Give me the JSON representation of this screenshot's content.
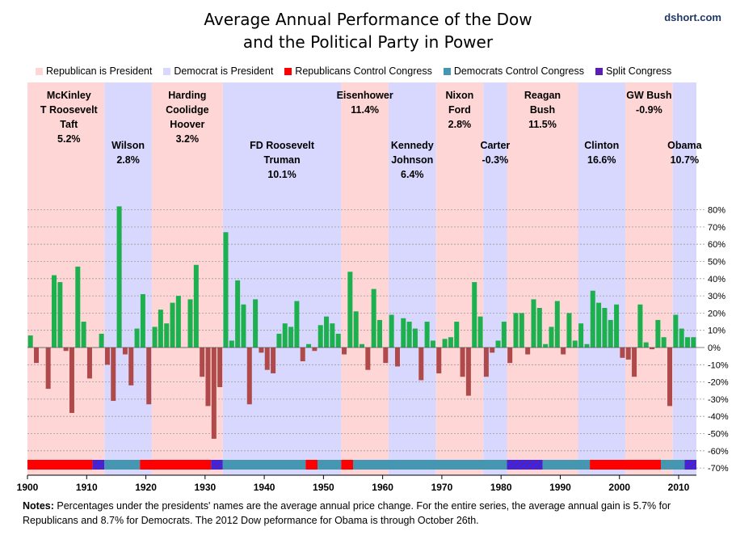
{
  "header": {
    "title_line1": "Average Annual Performance of the Dow",
    "title_line2": "and the Political Party in Power",
    "source": "dshort.com"
  },
  "legend": [
    {
      "label": "Republican is President",
      "color": "#ffd6d6"
    },
    {
      "label": "Democrat is President",
      "color": "#d8d8ff"
    },
    {
      "label": "Republicans Control Congress",
      "color": "#ff0000"
    },
    {
      "label": "Democrats Control Congress",
      "color": "#4596b0"
    },
    {
      "label": "Split Congress",
      "color": "#5a1fb0"
    }
  ],
  "notes": {
    "label": "Notes:",
    "text": "Percentages under the presidents' names are the average annual price change. For the entire series,  the average annual gain is 5.7% for Republicans and 8.7% for Democrats. The 2012  Dow peformance for Obama is through October 26th."
  },
  "colors": {
    "positive": "#1db04e",
    "negative": "#b04a4a",
    "republican_president": "#ffd6d6",
    "democrat_president": "#d8d8ff",
    "republican_congress": "#ff0000",
    "democrat_congress": "#4596b0",
    "split_congress": "#5a1fb0"
  },
  "chart_data": {
    "type": "bar",
    "title": "Average Annual Performance of the Dow and the Political Party in Power",
    "xlim": [
      1900,
      2012
    ],
    "ylim": [
      -70,
      80
    ],
    "x_ticks": [
      1900,
      1910,
      1920,
      1930,
      1940,
      1950,
      1960,
      1970,
      1980,
      1990,
      2000,
      2010
    ],
    "y_ticks": [
      -70,
      -60,
      -50,
      -40,
      -30,
      -20,
      -10,
      0,
      10,
      20,
      30,
      40,
      50,
      60,
      70,
      80
    ],
    "y_tick_labels": [
      "-70%",
      "-60%",
      "-50%",
      "-40%",
      "-30%",
      "-20%",
      "-10%",
      "0%",
      "10%",
      "20%",
      "30%",
      "40%",
      "50%",
      "60%",
      "70%",
      "80%"
    ],
    "grid": true,
    "years": [
      1900,
      1901,
      1902,
      1903,
      1904,
      1905,
      1906,
      1907,
      1908,
      1909,
      1910,
      1911,
      1912,
      1913,
      1914,
      1915,
      1916,
      1917,
      1918,
      1919,
      1920,
      1921,
      1922,
      1923,
      1924,
      1925,
      1926,
      1927,
      1928,
      1929,
      1930,
      1931,
      1932,
      1933,
      1934,
      1935,
      1936,
      1937,
      1938,
      1939,
      1940,
      1941,
      1942,
      1943,
      1944,
      1945,
      1946,
      1947,
      1948,
      1949,
      1950,
      1951,
      1952,
      1953,
      1954,
      1955,
      1956,
      1957,
      1958,
      1959,
      1960,
      1961,
      1962,
      1963,
      1964,
      1965,
      1966,
      1967,
      1968,
      1969,
      1970,
      1971,
      1972,
      1973,
      1974,
      1975,
      1976,
      1977,
      1978,
      1979,
      1980,
      1981,
      1982,
      1983,
      1984,
      1985,
      1986,
      1987,
      1988,
      1989,
      1990,
      1991,
      1992,
      1993,
      1994,
      1995,
      1996,
      1997,
      1998,
      1999,
      2000,
      2001,
      2002,
      2003,
      2004,
      2005,
      2006,
      2007,
      2008,
      2009,
      2010,
      2011,
      2012
    ],
    "values": [
      7,
      -9,
      0,
      -24,
      42,
      38,
      -2,
      -38,
      47,
      15,
      -18,
      0,
      8,
      -10,
      -31,
      82,
      -4,
      -22,
      11,
      31,
      -33,
      12,
      22,
      14,
      26,
      30,
      0,
      28,
      48,
      -17,
      -34,
      -53,
      -23,
      67,
      4,
      39,
      25,
      -33,
      28,
      -3,
      -13,
      -15,
      8,
      14,
      12,
      27,
      -8,
      2,
      -2,
      13,
      18,
      14,
      8,
      -4,
      44,
      21,
      2,
      -13,
      34,
      16,
      -9,
      19,
      -11,
      17,
      15,
      11,
      -19,
      15,
      4,
      -15,
      5,
      6,
      15,
      -17,
      -28,
      38,
      18,
      -17,
      -3,
      4,
      15,
      -9,
      20,
      20,
      -4,
      28,
      23,
      2,
      12,
      27,
      -4,
      20,
      4,
      14,
      2,
      33,
      26,
      23,
      16,
      25,
      -6,
      -7,
      -17,
      25,
      3,
      -1,
      16,
      6,
      -34,
      19,
      11,
      6,
      6
    ]
  },
  "president_bands": [
    {
      "start": 1900,
      "end": 1913,
      "party": "R"
    },
    {
      "start": 1913,
      "end": 1921,
      "party": "D"
    },
    {
      "start": 1921,
      "end": 1933,
      "party": "R"
    },
    {
      "start": 1933,
      "end": 1953,
      "party": "D"
    },
    {
      "start": 1953,
      "end": 1961,
      "party": "R"
    },
    {
      "start": 1961,
      "end": 1969,
      "party": "D"
    },
    {
      "start": 1969,
      "end": 1977,
      "party": "R"
    },
    {
      "start": 1977,
      "end": 1981,
      "party": "D"
    },
    {
      "start": 1981,
      "end": 1993,
      "party": "R"
    },
    {
      "start": 1993,
      "end": 2001,
      "party": "D"
    },
    {
      "start": 2001,
      "end": 2009,
      "party": "R"
    },
    {
      "start": 2009,
      "end": 2013,
      "party": "D"
    }
  ],
  "congress_bands": [
    {
      "start": 1900,
      "end": 1911,
      "party": "R"
    },
    {
      "start": 1911,
      "end": 1913,
      "party": "S"
    },
    {
      "start": 1913,
      "end": 1919,
      "party": "D"
    },
    {
      "start": 1919,
      "end": 1931,
      "party": "R"
    },
    {
      "start": 1931,
      "end": 1933,
      "party": "S"
    },
    {
      "start": 1933,
      "end": 1947,
      "party": "D"
    },
    {
      "start": 1947,
      "end": 1949,
      "party": "R"
    },
    {
      "start": 1949,
      "end": 1953,
      "party": "D"
    },
    {
      "start": 1953,
      "end": 1955,
      "party": "R"
    },
    {
      "start": 1955,
      "end": 1981,
      "party": "D"
    },
    {
      "start": 1981,
      "end": 1987,
      "party": "S"
    },
    {
      "start": 1987,
      "end": 1995,
      "party": "D"
    },
    {
      "start": 1995,
      "end": 2007,
      "party": "R"
    },
    {
      "start": 2007,
      "end": 2011,
      "party": "D"
    },
    {
      "start": 2011,
      "end": 2013,
      "party": "S"
    }
  ],
  "presidents": [
    {
      "name": "mckinley-roosevelt-taft",
      "lines": [
        "McKinley",
        "T Roosevelt",
        "Taft",
        "5.2%"
      ],
      "center_year": 1907,
      "top_row": true
    },
    {
      "name": "wilson",
      "lines": [
        "Wilson",
        "2.8%"
      ],
      "center_year": 1917,
      "top_row": false
    },
    {
      "name": "harding-coolidge-hoover",
      "lines": [
        "Harding",
        "Coolidge",
        "Hoover",
        "3.2%"
      ],
      "center_year": 1927,
      "top_row": true
    },
    {
      "name": "fdr-truman",
      "lines": [
        "FD Roosevelt",
        "Truman",
        "10.1%"
      ],
      "center_year": 1943,
      "top_row": false
    },
    {
      "name": "eisenhower",
      "lines": [
        "Eisenhower",
        "11.4%"
      ],
      "center_year": 1957,
      "top_row": true
    },
    {
      "name": "kennedy-johnson",
      "lines": [
        "Kennedy",
        "Johnson",
        "6.4%"
      ],
      "center_year": 1965,
      "top_row": false
    },
    {
      "name": "nixon-ford",
      "lines": [
        "Nixon",
        "Ford",
        "2.8%"
      ],
      "center_year": 1973,
      "top_row": true
    },
    {
      "name": "carter",
      "lines": [
        "Carter",
        "-0.3%"
      ],
      "center_year": 1979,
      "top_row": false
    },
    {
      "name": "reagan-bush",
      "lines": [
        "Reagan",
        "Bush",
        "11.5%"
      ],
      "center_year": 1987,
      "top_row": true
    },
    {
      "name": "clinton",
      "lines": [
        "Clinton",
        "16.6%"
      ],
      "center_year": 1997,
      "top_row": false
    },
    {
      "name": "gw-bush",
      "lines": [
        "GW Bush",
        "-0.9%"
      ],
      "center_year": 2005,
      "top_row": true
    },
    {
      "name": "obama",
      "lines": [
        "Obama",
        "10.7%"
      ],
      "center_year": 2011,
      "top_row": false
    }
  ]
}
